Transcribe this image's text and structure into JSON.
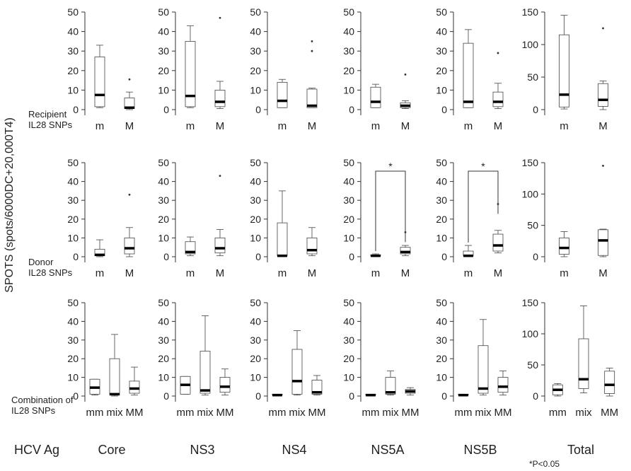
{
  "y_axis_label": "SPOTS (spots/6000DC+20,000T4)",
  "corner_label": "HCV Ag",
  "footnote": "*P<0.05",
  "columns": [
    "Core",
    "NS3",
    "NS4",
    "NS5A",
    "NS5B",
    "Total"
  ],
  "rows": [
    {
      "label_lines": [
        "Recipient",
        "IL28 SNPs"
      ],
      "categories": [
        "m",
        "M"
      ]
    },
    {
      "label_lines": [
        "Donor",
        "IL28 SNPs"
      ],
      "categories": [
        "m",
        "M"
      ]
    },
    {
      "label_lines": [
        "Combination of",
        "IL28 SNPs"
      ],
      "categories": [
        "mm",
        "mix",
        "MM"
      ]
    }
  ],
  "y_ticks": {
    "standard": [
      0,
      10,
      20,
      30,
      40,
      50
    ],
    "total": [
      0,
      50,
      100,
      150
    ]
  },
  "chart_data": {
    "type": "boxplot",
    "ylabel": "SPOTS (spots/6000DC+20,000T4)",
    "panels": [
      {
        "row": 0,
        "column": "Core",
        "ylim": [
          0,
          50
        ],
        "boxes": [
          {
            "category": "m",
            "low": 1,
            "q1": 1.5,
            "median": 7.5,
            "q3": 27,
            "high": 33,
            "outliers": []
          },
          {
            "category": "M",
            "low": 0,
            "q1": 0.5,
            "median": 1,
            "q3": 6,
            "high": 9,
            "outliers": [
              15.5
            ]
          }
        ]
      },
      {
        "row": 0,
        "column": "NS3",
        "ylim": [
          0,
          50
        ],
        "boxes": [
          {
            "category": "m",
            "low": 1,
            "q1": 1.5,
            "median": 7,
            "q3": 35,
            "high": 43,
            "outliers": []
          },
          {
            "category": "M",
            "low": 0.5,
            "q1": 1.5,
            "median": 4,
            "q3": 10,
            "high": 14.5,
            "outliers": [
              47
            ]
          }
        ]
      },
      {
        "row": 0,
        "column": "NS4",
        "ylim": [
          0,
          50
        ],
        "boxes": [
          {
            "category": "m",
            "low": 1,
            "q1": 1,
            "median": 4.5,
            "q3": 14,
            "high": 15.5,
            "outliers": []
          },
          {
            "category": "M",
            "low": 1,
            "q1": 1,
            "median": 2,
            "q3": 10.5,
            "high": 11,
            "outliers": [
              30,
              35
            ]
          }
        ]
      },
      {
        "row": 0,
        "column": "NS5A",
        "ylim": [
          0,
          50
        ],
        "boxes": [
          {
            "category": "m",
            "low": 1,
            "q1": 1,
            "median": 4,
            "q3": 11.5,
            "high": 13,
            "outliers": []
          },
          {
            "category": "M",
            "low": 0.5,
            "q1": 1,
            "median": 2,
            "q3": 3.5,
            "high": 4.5,
            "outliers": [
              18
            ]
          }
        ]
      },
      {
        "row": 0,
        "column": "NS5B",
        "ylim": [
          0,
          50
        ],
        "boxes": [
          {
            "category": "m",
            "low": 1,
            "q1": 1,
            "median": 4,
            "q3": 34,
            "high": 41,
            "outliers": []
          },
          {
            "category": "M",
            "low": 0.5,
            "q1": 1.5,
            "median": 4,
            "q3": 9,
            "high": 13.5,
            "outliers": [
              29
            ]
          }
        ]
      },
      {
        "row": 0,
        "column": "Total",
        "ylim": [
          0,
          150
        ],
        "boxes": [
          {
            "category": "m",
            "low": 1,
            "q1": 4,
            "median": 23,
            "q3": 115,
            "high": 145,
            "outliers": []
          },
          {
            "category": "M",
            "low": 0,
            "q1": 5,
            "median": 15,
            "q3": 40,
            "high": 44,
            "outliers": [
              125
            ]
          }
        ]
      },
      {
        "row": 1,
        "column": "Core",
        "ylim": [
          0,
          50
        ],
        "boxes": [
          {
            "category": "m",
            "low": 0,
            "q1": 0.5,
            "median": 1,
            "q3": 4,
            "high": 9,
            "outliers": []
          },
          {
            "category": "M",
            "low": 0,
            "q1": 1.5,
            "median": 4.5,
            "q3": 10,
            "high": 15.5,
            "outliers": [
              33
            ]
          }
        ]
      },
      {
        "row": 1,
        "column": "NS3",
        "ylim": [
          0,
          50
        ],
        "boxes": [
          {
            "category": "m",
            "low": 0.5,
            "q1": 1.5,
            "median": 2.5,
            "q3": 8,
            "high": 10.5,
            "outliers": []
          },
          {
            "category": "M",
            "low": 0.5,
            "q1": 2,
            "median": 4.5,
            "q3": 10,
            "high": 14.5,
            "outliers": [
              43
            ]
          }
        ]
      },
      {
        "row": 1,
        "column": "NS4",
        "ylim": [
          0,
          50
        ],
        "boxes": [
          {
            "category": "m",
            "low": 0,
            "q1": 0.5,
            "median": 0.5,
            "q3": 18,
            "high": 35,
            "outliers": []
          },
          {
            "category": "M",
            "low": 0.5,
            "q1": 1.5,
            "median": 3.5,
            "q3": 10,
            "high": 15.5,
            "outliers": []
          }
        ]
      },
      {
        "row": 1,
        "column": "NS5A",
        "ylim": [
          0,
          50
        ],
        "boxes": [
          {
            "category": "m",
            "low": 0,
            "q1": 0.5,
            "median": 0.5,
            "q3": 1,
            "high": 1.5,
            "outliers": []
          },
          {
            "category": "M",
            "low": 0.5,
            "q1": 1.5,
            "median": 2.5,
            "q3": 5,
            "high": 6,
            "outliers": [
              13
            ]
          }
        ]
      },
      {
        "row": 1,
        "column": "NS5B",
        "ylim": [
          0,
          50
        ],
        "boxes": [
          {
            "category": "m",
            "low": 0,
            "q1": 0.5,
            "median": 0.5,
            "q3": 3,
            "high": 6,
            "outliers": []
          },
          {
            "category": "M",
            "low": 2,
            "q1": 3,
            "median": 6,
            "q3": 12,
            "high": 14,
            "outliers": [
              28
            ]
          }
        ]
      },
      {
        "row": 1,
        "column": "Total",
        "ylim": [
          0,
          150
        ],
        "boxes": [
          {
            "category": "m",
            "low": 0,
            "q1": 4,
            "median": 14,
            "q3": 30,
            "high": 40,
            "outliers": []
          },
          {
            "category": "M",
            "low": 0,
            "q1": 2,
            "median": 26,
            "q3": 43,
            "high": 44,
            "outliers": [
              145
            ]
          }
        ]
      },
      {
        "row": 2,
        "column": "Core",
        "ylim": [
          0,
          50
        ],
        "boxes": [
          {
            "category": "mm",
            "low": 0.5,
            "q1": 1,
            "median": 4.5,
            "q3": 9,
            "high": 9,
            "outliers": []
          },
          {
            "category": "mix",
            "low": 0,
            "q1": 0.5,
            "median": 1,
            "q3": 20,
            "high": 33,
            "outliers": []
          },
          {
            "category": "MM",
            "low": 0.5,
            "q1": 1.5,
            "median": 4,
            "q3": 8,
            "high": 15.5,
            "outliers": []
          }
        ]
      },
      {
        "row": 2,
        "column": "NS3",
        "ylim": [
          0,
          50
        ],
        "boxes": [
          {
            "category": "mm",
            "low": 1,
            "q1": 1,
            "median": 6,
            "q3": 10.5,
            "high": 10.5,
            "outliers": []
          },
          {
            "category": "mix",
            "low": 0.5,
            "q1": 1.5,
            "median": 3,
            "q3": 24,
            "high": 43,
            "outliers": []
          },
          {
            "category": "MM",
            "low": 0.5,
            "q1": 2,
            "median": 5,
            "q3": 10,
            "high": 14.5,
            "outliers": []
          }
        ]
      },
      {
        "row": 2,
        "column": "NS4",
        "ylim": [
          0,
          50
        ],
        "boxes": [
          {
            "category": "mm",
            "low": 0,
            "q1": 0.5,
            "median": 0.5,
            "q3": 1,
            "high": 1,
            "outliers": []
          },
          {
            "category": "mix",
            "low": 0.5,
            "q1": 1,
            "median": 8,
            "q3": 25,
            "high": 35,
            "outliers": []
          },
          {
            "category": "MM",
            "low": 0.5,
            "q1": 1,
            "median": 2,
            "q3": 8.5,
            "high": 11,
            "outliers": []
          }
        ]
      },
      {
        "row": 2,
        "column": "NS5A",
        "ylim": [
          0,
          50
        ],
        "boxes": [
          {
            "category": "mm",
            "low": 0,
            "q1": 0.5,
            "median": 0.5,
            "q3": 1,
            "high": 1,
            "outliers": []
          },
          {
            "category": "mix",
            "low": 0.5,
            "q1": 1,
            "median": 2,
            "q3": 10,
            "high": 13.5,
            "outliers": []
          },
          {
            "category": "MM",
            "low": 0.5,
            "q1": 1.5,
            "median": 2.5,
            "q3": 3.5,
            "high": 4.5,
            "outliers": []
          }
        ]
      },
      {
        "row": 2,
        "column": "NS5B",
        "ylim": [
          0,
          50
        ],
        "boxes": [
          {
            "category": "mm",
            "low": 0,
            "q1": 0.5,
            "median": 0.5,
            "q3": 1,
            "high": 1,
            "outliers": []
          },
          {
            "category": "mix",
            "low": 0.5,
            "q1": 1.5,
            "median": 4,
            "q3": 27,
            "high": 41,
            "outliers": []
          },
          {
            "category": "MM",
            "low": 0.5,
            "q1": 2,
            "median": 5,
            "q3": 10,
            "high": 13.5,
            "outliers": []
          }
        ]
      },
      {
        "row": 2,
        "column": "Total",
        "ylim": [
          0,
          150
        ],
        "boxes": [
          {
            "category": "mm",
            "low": 0,
            "q1": 2,
            "median": 10,
            "q3": 18,
            "high": 20,
            "outliers": []
          },
          {
            "category": "mix",
            "low": 5,
            "q1": 12,
            "median": 27,
            "q3": 92,
            "high": 145,
            "outliers": []
          },
          {
            "category": "MM",
            "low": 0,
            "q1": 4,
            "median": 18,
            "q3": 40,
            "high": 45,
            "outliers": []
          }
        ]
      }
    ],
    "significance": [
      {
        "row": 1,
        "column": "NS5A",
        "between": [
          "m",
          "M"
        ],
        "label": "*"
      },
      {
        "row": 1,
        "column": "NS5B",
        "between": [
          "m",
          "M"
        ],
        "label": "*"
      }
    ]
  }
}
